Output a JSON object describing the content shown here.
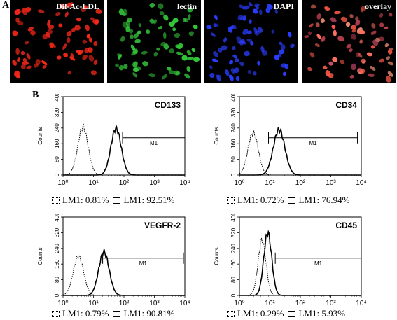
{
  "panel_a": {
    "letter": "A",
    "images": [
      {
        "label": "Dil-Ac-LDL",
        "color": "#ff2a1a"
      },
      {
        "label": "lectin",
        "color": "#33c43a"
      },
      {
        "label": "DAPI",
        "color": "#2a3dff"
      },
      {
        "label": "overlay",
        "color": "#e86a5a"
      }
    ]
  },
  "panel_b": {
    "letter": "B",
    "y_axis_label": "Counts",
    "gate_label": "M1",
    "chart_data": [
      {
        "type": "area",
        "title": "CD133",
        "xscale": "log",
        "xlim": [
          1,
          10000
        ],
        "ylim": [
          0,
          400
        ],
        "yticks": [
          "0",
          "80",
          "160",
          "240",
          "320",
          "400"
        ],
        "xticks": [
          "10⁰",
          "10¹",
          "10²",
          "10³",
          "10⁴"
        ],
        "gate": [
          90,
          10000
        ],
        "legend": {
          "isotype": "LM1: 0.81%",
          "marker": "LM1: 92.51%"
        },
        "series": [
          {
            "role": "isotype",
            "peak_x": 4.5,
            "peak_y": 245,
            "width": 0.17
          },
          {
            "role": "marker",
            "peak_x": 55,
            "peak_y": 238,
            "width": 0.17
          }
        ]
      },
      {
        "type": "area",
        "title": "CD34",
        "xscale": "log",
        "xlim": [
          1,
          10000
        ],
        "ylim": [
          0,
          400
        ],
        "yticks": [
          "0",
          "80",
          "160",
          "240",
          "320",
          "400"
        ],
        "xticks": [
          "10⁰",
          "10¹",
          "10²",
          "10³",
          "10⁴"
        ],
        "gate": [
          9,
          7500
        ],
        "legend": {
          "isotype": "LM1: 0.72%",
          "marker": "LM1: 76.94%"
        },
        "series": [
          {
            "role": "isotype",
            "peak_x": 2.8,
            "peak_y": 215,
            "width": 0.17
          },
          {
            "role": "marker",
            "peak_x": 20,
            "peak_y": 232,
            "width": 0.19
          }
        ]
      },
      {
        "type": "area",
        "title": "VEGFR-2",
        "xscale": "log",
        "xlim": [
          1,
          10000
        ],
        "ylim": [
          0,
          400
        ],
        "yticks": [
          "0",
          "80",
          "160",
          "240",
          "320",
          "400"
        ],
        "xticks": [
          "10⁰",
          "10¹",
          "10²",
          "10³",
          "10⁴"
        ],
        "gate": [
          20,
          9000
        ],
        "legend": {
          "isotype": "LM1:  0.79%",
          "marker": "LM1: 90.81%"
        },
        "series": [
          {
            "role": "isotype",
            "peak_x": 3.2,
            "peak_y": 200,
            "width": 0.17
          },
          {
            "role": "marker",
            "peak_x": 22,
            "peak_y": 222,
            "width": 0.17
          }
        ]
      },
      {
        "type": "area",
        "title": "CD45",
        "xscale": "log",
        "xlim": [
          1,
          10000
        ],
        "ylim": [
          0,
          400
        ],
        "yticks": [
          "0",
          "80",
          "160",
          "240",
          "320",
          "400"
        ],
        "xticks": [
          "10⁰",
          "10¹",
          "10²",
          "10³",
          "10⁴"
        ],
        "gate": [
          15,
          10000
        ],
        "legend": {
          "isotype": "LM1: 0.29%",
          "marker": "LM1: 5.93%"
        },
        "series": [
          {
            "role": "isotype",
            "peak_x": 5.5,
            "peak_y": 280,
            "width": 0.13
          },
          {
            "role": "marker",
            "peak_x": 8.5,
            "peak_y": 320,
            "width": 0.13
          }
        ]
      }
    ]
  }
}
